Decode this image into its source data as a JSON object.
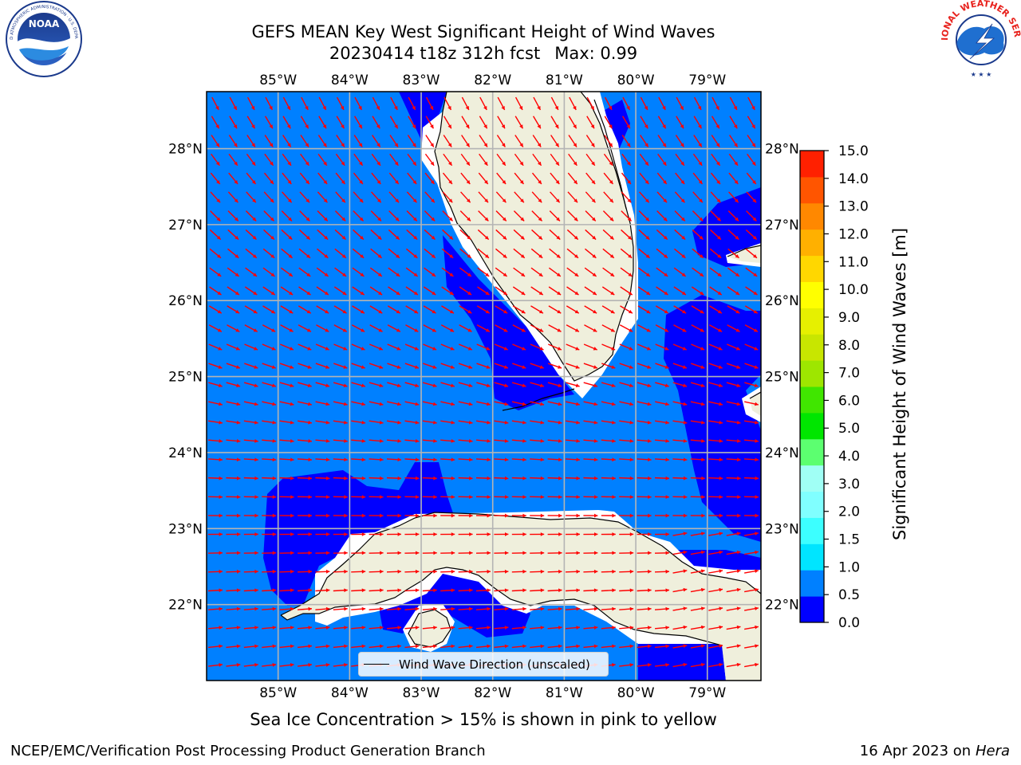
{
  "title": {
    "line1": "GEFS MEAN Key West Significant Height of Wind Waves",
    "line2_date": "20230414 t18z 312h fcst",
    "line2_max": "Max: 0.99"
  },
  "logos": {
    "left": "NOAA",
    "left_ring": "NATIONAL OCEANIC AND ATMOSPHERIC ADMINISTRATION · U.S. DEPARTMENT OF COMMERCE",
    "right": "NATIONAL WEATHER SERVICE"
  },
  "map": {
    "lon_ticks": [
      "85°W",
      "84°W",
      "83°W",
      "82°W",
      "81°W",
      "80°W",
      "79°W"
    ],
    "lat_ticks": [
      "28°N",
      "27°N",
      "26°N",
      "25°N",
      "24°N",
      "23°N",
      "22°N"
    ],
    "lon_range": [
      -86.0,
      -78.25
    ],
    "lat_range": [
      21.0,
      28.75
    ],
    "ocean_color": "#0080ff",
    "low_band_color": "#0000ff",
    "land_color": "#efefdc",
    "arrow_color": "#ff0000",
    "legend_label": "Wind Wave Direction (unscaled)"
  },
  "colorbar": {
    "label": "Significant Height of Wind Waves [m]",
    "ticks": [
      "0.0",
      "0.5",
      "1.0",
      "1.5",
      "2.0",
      "3.0",
      "4.0",
      "5.0",
      "6.0",
      "7.0",
      "8.0",
      "9.0",
      "10.0",
      "11.0",
      "12.0",
      "13.0",
      "14.0",
      "15.0"
    ],
    "colors": [
      "#0000ff",
      "#0080ff",
      "#00e5ff",
      "#3cffff",
      "#80ffff",
      "#a0fff5",
      "#5cff70",
      "#00e600",
      "#40e600",
      "#9ee600",
      "#c8e600",
      "#e6f000",
      "#ffff00",
      "#ffd700",
      "#ffb000",
      "#ff8800",
      "#ff5500",
      "#ff2000"
    ]
  },
  "footnote": "Sea Ice Concentration > 15% is shown in pink to yellow",
  "credit_left": "NCEP/EMC/Verification Post Processing Product Generation Branch",
  "credit_right_date": "16 Apr 2023 on",
  "credit_right_host": "Hera"
}
